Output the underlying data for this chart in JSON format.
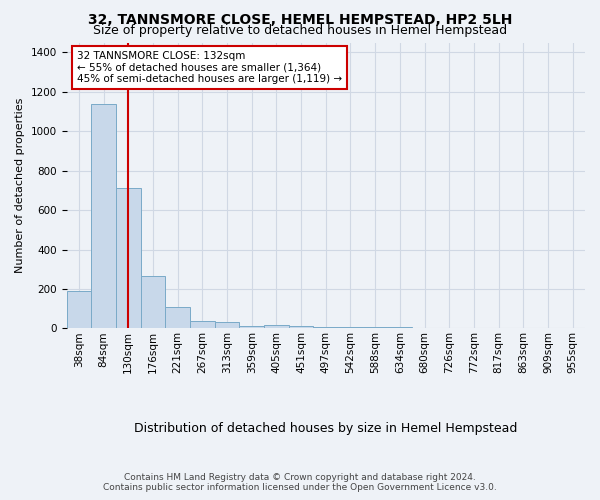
{
  "title": "32, TANNSMORE CLOSE, HEMEL HEMPSTEAD, HP2 5LH",
  "subtitle": "Size of property relative to detached houses in Hemel Hempstead",
  "xlabel": "Distribution of detached houses by size in Hemel Hempstead",
  "ylabel": "Number of detached properties",
  "bar_values": [
    190,
    1140,
    710,
    265,
    110,
    40,
    35,
    15,
    20,
    15,
    10,
    8,
    5,
    5,
    4,
    3,
    3,
    3,
    3,
    3
  ],
  "bin_labels": [
    "38sqm",
    "84sqm",
    "130sqm",
    "176sqm",
    "221sqm",
    "267sqm",
    "313sqm",
    "359sqm",
    "405sqm",
    "451sqm",
    "497sqm",
    "542sqm",
    "588sqm",
    "634sqm",
    "680sqm",
    "726sqm",
    "772sqm",
    "817sqm",
    "863sqm",
    "909sqm",
    "955sqm"
  ],
  "bar_color": "#c8d8ea",
  "bar_edge_color": "#7aaac8",
  "vline_x_index": 2,
  "vline_color": "#cc0000",
  "annotation_text": "32 TANNSMORE CLOSE: 132sqm\n← 55% of detached houses are smaller (1,364)\n45% of semi-detached houses are larger (1,119) →",
  "annotation_box_facecolor": "#ffffff",
  "annotation_box_edgecolor": "#cc0000",
  "ylim": [
    0,
    1450
  ],
  "yticks": [
    0,
    200,
    400,
    600,
    800,
    1000,
    1200,
    1400
  ],
  "footer1": "Contains HM Land Registry data © Crown copyright and database right 2024.",
  "footer2": "Contains public sector information licensed under the Open Government Licence v3.0.",
  "fig_bg_color": "#eef2f7",
  "plot_bg_color": "#eef2f7",
  "grid_color": "#d0d8e4",
  "title_fontsize": 10,
  "subtitle_fontsize": 9,
  "ylabel_fontsize": 8,
  "xlabel_fontsize": 9,
  "tick_fontsize": 7.5,
  "footer_fontsize": 6.5,
  "annot_fontsize": 7.5
}
